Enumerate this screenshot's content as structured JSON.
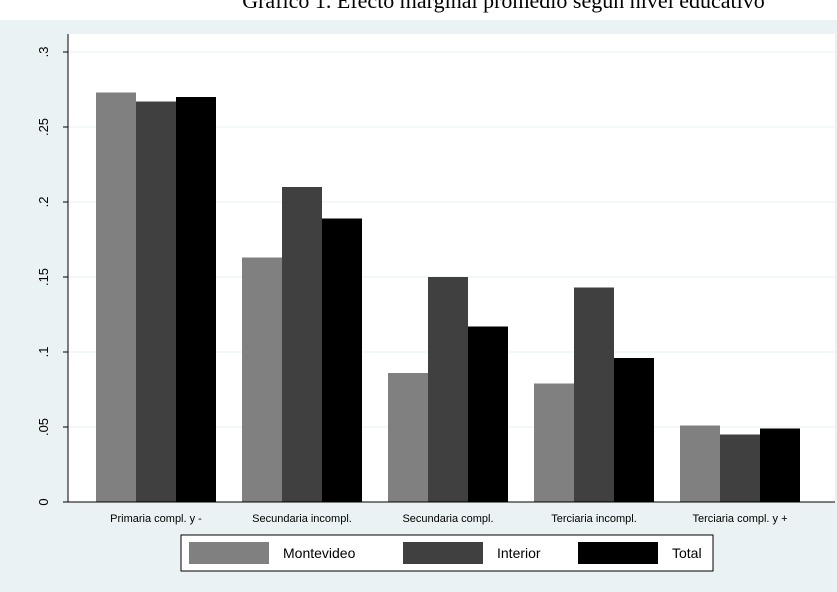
{
  "title": "Gráfico 1. Efecto marginal promedio según nivel educativo",
  "chart_data": {
    "type": "bar",
    "title": "Gráfico 1. Efecto marginal promedio según nivel educativo",
    "xlabel": "",
    "ylabel": "",
    "categories": [
      "Primaria compl. y -",
      "Secundaria incompl.",
      "Secundaria compl.",
      "Terciaria incompl.",
      "Terciaria compl. y +"
    ],
    "series": [
      {
        "name": "Montevideo",
        "color": "#808080",
        "values": [
          0.273,
          0.163,
          0.086,
          0.079,
          0.051
        ]
      },
      {
        "name": "Interior",
        "color": "#404040",
        "values": [
          0.267,
          0.21,
          0.15,
          0.143,
          0.045
        ]
      },
      {
        "name": "Total",
        "color": "#000000",
        "values": [
          0.27,
          0.189,
          0.117,
          0.096,
          0.049
        ]
      }
    ],
    "ylim": [
      0,
      0.3
    ],
    "yticks": [
      0,
      0.05,
      0.1,
      0.15,
      0.2,
      0.25,
      0.3
    ],
    "ytick_labels": [
      "0",
      ".05",
      ".1",
      ".15",
      ".2",
      ".25",
      ".3"
    ],
    "grid": true,
    "legend_position": "bottom"
  }
}
